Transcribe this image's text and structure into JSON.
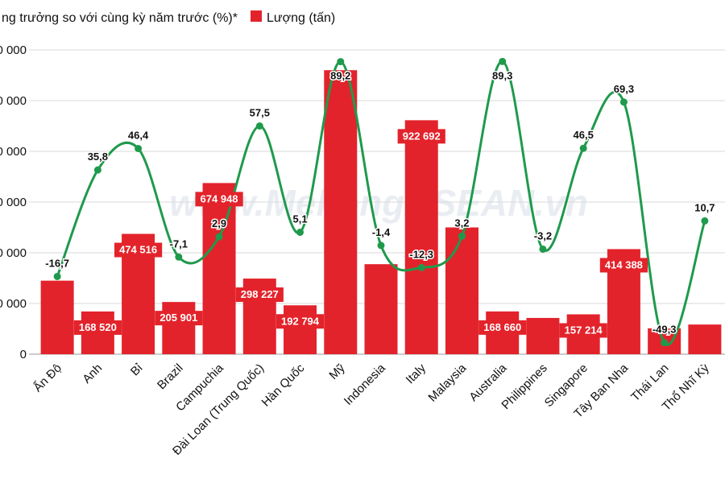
{
  "chart_data": {
    "type": "bar",
    "title": "",
    "xlabel": "",
    "ylabel": "",
    "legend": {
      "position": "top",
      "entries": [
        {
          "label": "ng trưởng so với cùng kỳ năm trước (%)*",
          "kind": "line",
          "color": "#1f9a4c"
        },
        {
          "label": "Lượng (tấn)",
          "kind": "bar",
          "color": "#e3232b"
        }
      ]
    },
    "categories": [
      "Ấn Độ",
      "Anh",
      "Bỉ",
      "Brazil",
      "Campuchia",
      "Đài Loan (Trung Quốc)",
      "Hàn Quốc",
      "Mỹ",
      "Indonesia",
      "Italy",
      "Malaysia",
      "Australia",
      "Philippines",
      "Singapore",
      "Tây Ban Nha",
      "Thái Lan",
      "Thổ Nhĩ Kỳ"
    ],
    "y_ticks": [
      "0",
      "0 000",
      "0 000",
      "0 000",
      "0 000",
      "0 000",
      "0 000"
    ],
    "ylim": [
      0,
      1200000
    ],
    "series": [
      {
        "name": "Lượng (tấn)",
        "type": "bar",
        "values": [
          290000,
          168520,
          474516,
          205901,
          674948,
          298227,
          192794,
          1120000,
          355000,
          922692,
          500000,
          168660,
          143000,
          157214,
          414388,
          102000,
          117000
        ],
        "labels": [
          "",
          "168 520",
          "474 516",
          "205 901",
          "674 948",
          "298 227",
          "192 794",
          "",
          "",
          "922 692",
          "",
          "168 660",
          "",
          "157 214",
          "414 388",
          "",
          ""
        ]
      },
      {
        "name": "Tăng trưởng so với cùng kỳ năm trước (%)",
        "type": "line",
        "values": [
          -16.7,
          35.8,
          46.4,
          -7.1,
          2.9,
          57.5,
          5.1,
          89.2,
          -1.4,
          -12.3,
          3.2,
          89.3,
          -3.2,
          46.5,
          69.3,
          -49.3,
          10.7
        ],
        "labels": [
          "-16,7",
          "35,8",
          "46,4",
          "-7,1",
          "2,9",
          "57,5",
          "5,1",
          "89,2",
          "-1,4",
          "-12,3",
          "3,2",
          "89,3",
          "-3,2",
          "46,5",
          "69,3",
          "-49,3",
          "10,7"
        ],
        "range": [
          -55,
          95
        ]
      }
    ],
    "watermark": "www.MekongASEAN.vn"
  }
}
